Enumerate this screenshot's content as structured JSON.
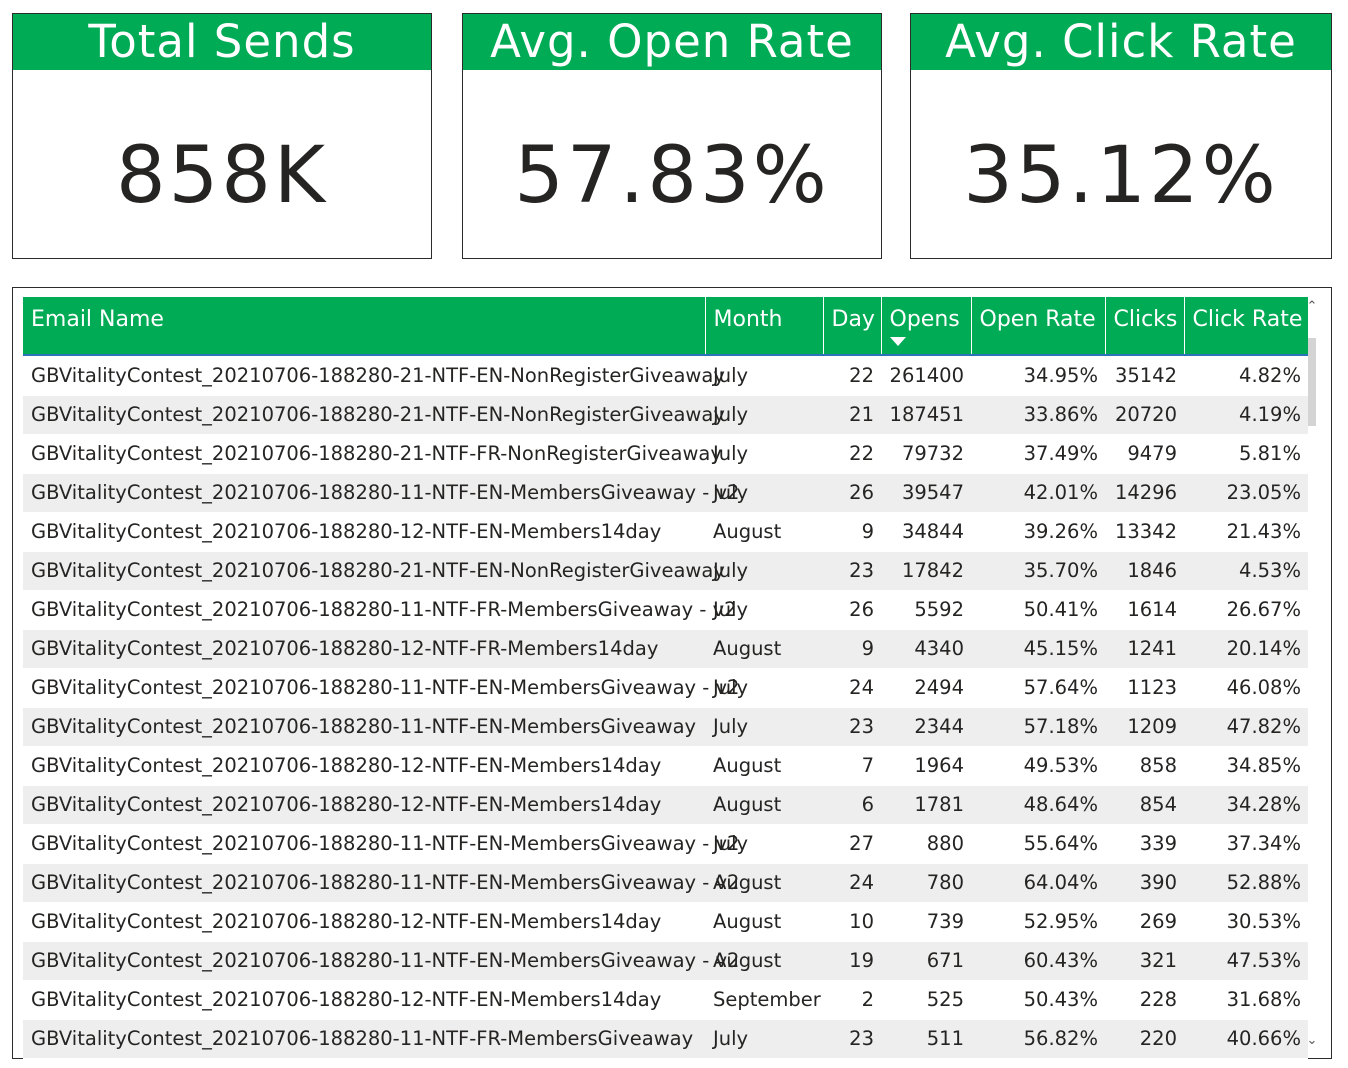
{
  "kpis": [
    {
      "title": "Total Sends",
      "value": "858K"
    },
    {
      "title": "Avg. Open Rate",
      "value": "57.83%"
    },
    {
      "title": "Avg. Click Rate",
      "value": "35.12%"
    }
  ],
  "table": {
    "columns": [
      "Email Name",
      "Month",
      "Day",
      "Opens",
      "Open Rate",
      "Clicks",
      "Click Rate"
    ],
    "sorted_column": "Opens",
    "sort_direction": "descending",
    "rows": [
      [
        "GBVitalityContest_20210706-188280-21-NTF-EN-NonRegisterGiveaway",
        "July",
        "22",
        "261400",
        "34.95%",
        "35142",
        "4.82%"
      ],
      [
        "GBVitalityContest_20210706-188280-21-NTF-EN-NonRegisterGiveaway",
        "July",
        "21",
        "187451",
        "33.86%",
        "20720",
        "4.19%"
      ],
      [
        "GBVitalityContest_20210706-188280-21-NTF-FR-NonRegisterGiveaway",
        "July",
        "22",
        "79732",
        "37.49%",
        "9479",
        "5.81%"
      ],
      [
        "GBVitalityContest_20210706-188280-11-NTF-EN-MembersGiveaway - v2",
        "July",
        "26",
        "39547",
        "42.01%",
        "14296",
        "23.05%"
      ],
      [
        "GBVitalityContest_20210706-188280-12-NTF-EN-Members14day",
        "August",
        "9",
        "34844",
        "39.26%",
        "13342",
        "21.43%"
      ],
      [
        "GBVitalityContest_20210706-188280-21-NTF-EN-NonRegisterGiveaway",
        "July",
        "23",
        "17842",
        "35.70%",
        "1846",
        "4.53%"
      ],
      [
        "GBVitalityContest_20210706-188280-11-NTF-FR-MembersGiveaway - v2",
        "July",
        "26",
        "5592",
        "50.41%",
        "1614",
        "26.67%"
      ],
      [
        "GBVitalityContest_20210706-188280-12-NTF-FR-Members14day",
        "August",
        "9",
        "4340",
        "45.15%",
        "1241",
        "20.14%"
      ],
      [
        "GBVitalityContest_20210706-188280-11-NTF-EN-MembersGiveaway - v2",
        "July",
        "24",
        "2494",
        "57.64%",
        "1123",
        "46.08%"
      ],
      [
        "GBVitalityContest_20210706-188280-11-NTF-EN-MembersGiveaway",
        "July",
        "23",
        "2344",
        "57.18%",
        "1209",
        "47.82%"
      ],
      [
        "GBVitalityContest_20210706-188280-12-NTF-EN-Members14day",
        "August",
        "7",
        "1964",
        "49.53%",
        "858",
        "34.85%"
      ],
      [
        "GBVitalityContest_20210706-188280-12-NTF-EN-Members14day",
        "August",
        "6",
        "1781",
        "48.64%",
        "854",
        "34.28%"
      ],
      [
        "GBVitalityContest_20210706-188280-11-NTF-EN-MembersGiveaway - v2",
        "July",
        "27",
        "880",
        "55.64%",
        "339",
        "37.34%"
      ],
      [
        "GBVitalityContest_20210706-188280-11-NTF-EN-MembersGiveaway - v2",
        "August",
        "24",
        "780",
        "64.04%",
        "390",
        "52.88%"
      ],
      [
        "GBVitalityContest_20210706-188280-12-NTF-EN-Members14day",
        "August",
        "10",
        "739",
        "52.95%",
        "269",
        "30.53%"
      ],
      [
        "GBVitalityContest_20210706-188280-11-NTF-EN-MembersGiveaway - v2",
        "August",
        "19",
        "671",
        "60.43%",
        "321",
        "47.53%"
      ],
      [
        "GBVitalityContest_20210706-188280-12-NTF-EN-Members14day",
        "September",
        "2",
        "525",
        "50.43%",
        "228",
        "31.68%"
      ],
      [
        "GBVitalityContest_20210706-188280-11-NTF-FR-MembersGiveaway",
        "July",
        "23",
        "511",
        "56.82%",
        "220",
        "40.66%"
      ]
    ]
  },
  "icons": {
    "sort": "sort-descending-icon",
    "scroll_up": "chevron-up-icon",
    "scroll_down": "chevron-down-icon"
  },
  "colors": {
    "accent": "#00ab55",
    "header_underline": "#2a73b6",
    "row_alt": "#eeeeee",
    "border": "#2b2b2b"
  }
}
